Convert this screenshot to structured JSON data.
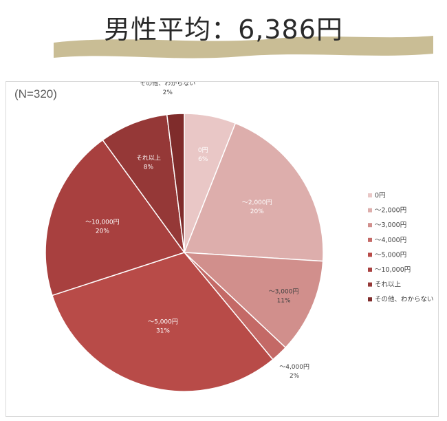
{
  "headline": {
    "title": "男性平均：6,386円",
    "stripe_color": "#c9bd95"
  },
  "chart_data": {
    "type": "pie",
    "title": "",
    "note": "(N=320)",
    "legend_position": "right",
    "series": [
      {
        "label": "0円",
        "value": 6,
        "display": "6%",
        "color": "#e9c7c6"
      },
      {
        "label": "～2,000円",
        "value": 20,
        "display": "20%",
        "color": "#ddaeac"
      },
      {
        "label": "～3,000円",
        "value": 11,
        "display": "11%",
        "color": "#d18f8c"
      },
      {
        "label": "～4,000円",
        "value": 2,
        "display": "2%",
        "color": "#c46966"
      },
      {
        "label": "～5,000円",
        "value": 31,
        "display": "31%",
        "color": "#b84b48"
      },
      {
        "label": "～10,000円",
        "value": 20,
        "display": "20%",
        "color": "#a8403f"
      },
      {
        "label": "それ以上",
        "value": 8,
        "display": "8%",
        "color": "#953837"
      },
      {
        "label": "その他、わからない",
        "value": 2,
        "display": "2%",
        "color": "#7f2c2b"
      }
    ]
  }
}
